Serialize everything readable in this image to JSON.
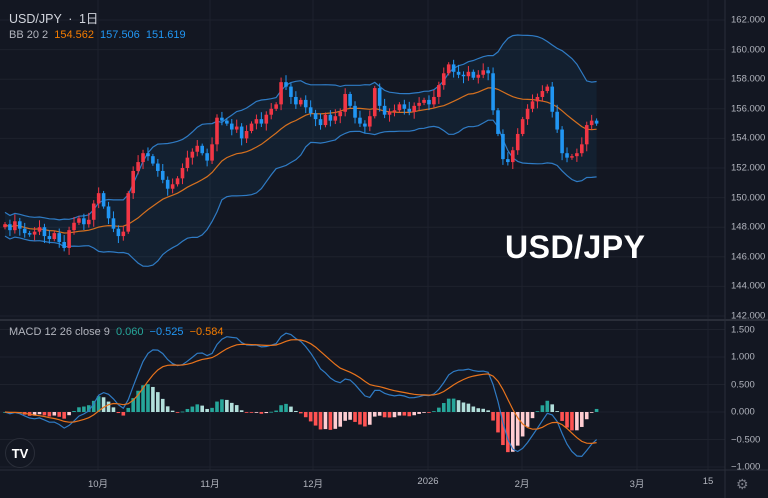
{
  "header": {
    "symbol": "USD/JPY",
    "separator": "·",
    "interval": "1日"
  },
  "bb_legend": {
    "label": "BB 20 2",
    "basis": "154.562",
    "upper": "157.506",
    "lower": "151.619"
  },
  "macd_legend": {
    "label": "MACD 12 26 close 9",
    "hist": "0.060",
    "macd": "−0.525",
    "signal": "−0.584"
  },
  "watermark": "USD/JPY",
  "colors": {
    "background": "#131722",
    "up": "#f23645",
    "down": "#2196f3",
    "band": "#2f7bc4",
    "basis": "#d5701f",
    "macd": "#2f7bc4",
    "signal": "#e8731c",
    "hist_pos_up": "#26a69a",
    "hist_pos_down": "#b2dfdb",
    "hist_neg_down": "#ff5252",
    "hist_neg_up": "#ffcdd2"
  },
  "icons": {
    "logo": "tradingview-logo",
    "settings": "gear-icon"
  },
  "chart_data": {
    "type": "candlestick",
    "price_axis": {
      "ticks": [
        "162.000",
        "160.000",
        "158.000",
        "156.000",
        "154.000",
        "152.000",
        "150.000",
        "148.000",
        "146.000",
        "144.000",
        "142.000"
      ],
      "range": [
        142,
        162
      ]
    },
    "macd_axis": {
      "ticks": [
        "1.500",
        "1.000",
        "0.500",
        "0.000",
        "−0.500",
        "−1.000"
      ],
      "range": [
        -1.0,
        1.5
      ]
    },
    "time_axis": {
      "ticks": [
        "10月",
        "11月",
        "12月",
        "2026",
        "2月",
        "3月",
        "15"
      ]
    },
    "closes": [
      148.2,
      147.8,
      148.4,
      147.9,
      147.6,
      147.5,
      147.7,
      148.0,
      147.4,
      147.2,
      147.6,
      147.0,
      146.6,
      147.8,
      148.3,
      148.6,
      148.2,
      148.5,
      149.6,
      150.3,
      149.4,
      148.6,
      147.9,
      147.4,
      147.7,
      150.3,
      151.8,
      152.4,
      153.0,
      152.8,
      152.3,
      151.8,
      151.2,
      150.6,
      150.9,
      151.3,
      152.0,
      152.7,
      153.1,
      153.5,
      153.0,
      152.5,
      153.6,
      155.4,
      155.2,
      155.0,
      154.6,
      154.8,
      154.0,
      154.5,
      155.0,
      155.3,
      155.0,
      155.6,
      156.0,
      156.3,
      157.8,
      157.5,
      156.8,
      156.3,
      156.6,
      156.1,
      155.7,
      155.3,
      154.9,
      155.6,
      155.2,
      155.5,
      155.8,
      157.0,
      156.2,
      155.4,
      155.0,
      154.8,
      155.5,
      157.4,
      156.2,
      155.6,
      155.8,
      155.9,
      156.3,
      156.0,
      155.8,
      156.2,
      156.4,
      156.6,
      156.3,
      156.8,
      157.6,
      158.4,
      159.0,
      158.5,
      158.3,
      158.2,
      158.5,
      158.1,
      158.3,
      158.6,
      158.4,
      155.9,
      154.3,
      152.6,
      152.4,
      153.2,
      154.3,
      155.3,
      156.0,
      156.5,
      156.8,
      157.2,
      157.5,
      155.8,
      154.6,
      153.0,
      152.7,
      152.8,
      153.0,
      153.6,
      154.9,
      155.2,
      155.0
    ],
    "indicators": [
      "Bollinger Bands (20, 2)",
      "MACD (12, 26, 9)"
    ]
  }
}
